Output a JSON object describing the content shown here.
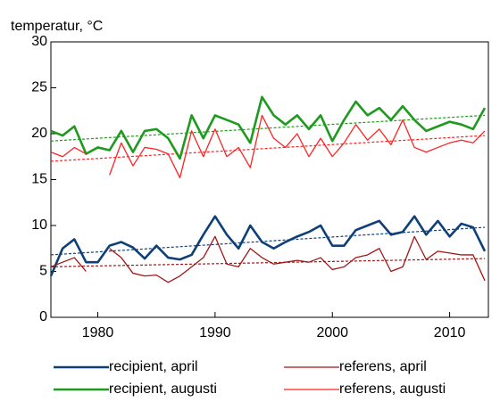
{
  "chart_data": {
    "type": "line",
    "y_axis_label": "temperatur, °C",
    "x": [
      1976,
      1977,
      1978,
      1979,
      1980,
      1981,
      1982,
      1983,
      1984,
      1985,
      1986,
      1987,
      1988,
      1989,
      1990,
      1991,
      1992,
      1993,
      1994,
      1995,
      1996,
      1997,
      1998,
      1999,
      2000,
      2001,
      2002,
      2003,
      2004,
      2005,
      2006,
      2007,
      2008,
      2009,
      2010,
      2011,
      2012,
      2013
    ],
    "xlim": [
      1976,
      2013
    ],
    "xticks": [
      1980,
      1990,
      2000,
      2010
    ],
    "ylim": [
      0,
      30
    ],
    "yticks": [
      0,
      5,
      10,
      15,
      20,
      25,
      30
    ],
    "series": [
      {
        "name": "recipient, april",
        "color": "#0f3f78",
        "values": [
          4.5,
          7.5,
          8.5,
          6,
          6,
          7.8,
          8.2,
          7.6,
          6.4,
          7.8,
          6.5,
          6.3,
          6.8,
          9,
          11,
          9,
          7.5,
          10,
          8.2,
          7.5,
          8.2,
          8.8,
          9.3,
          10,
          7.8,
          7.8,
          9.5,
          10,
          10.5,
          9,
          9.3,
          11,
          9,
          10.5,
          8.8,
          10.2,
          9.8,
          7.2
        ]
      },
      {
        "name": "referens, april",
        "color": "#a31515",
        "values": [
          5.5,
          6,
          6.5,
          5,
          null,
          7.5,
          6.5,
          4.8,
          4.5,
          4.6,
          3.8,
          4.5,
          5.5,
          6.5,
          8.8,
          5.8,
          5.5,
          7.5,
          6.5,
          5.8,
          6,
          6.2,
          6,
          6.5,
          5.2,
          5.5,
          6.5,
          6.8,
          7.5,
          5,
          5.5,
          8.8,
          6.3,
          7.2,
          7,
          6.8,
          6.8,
          4
        ]
      },
      {
        "name": "recipient, augusti",
        "color": "#1e9a1e",
        "values": [
          20.3,
          19.8,
          20.8,
          17.8,
          18.5,
          18.2,
          20.3,
          18,
          20.3,
          20.5,
          19.5,
          17.3,
          22,
          19.5,
          22,
          21.5,
          21,
          19,
          24,
          22,
          21,
          22,
          20.5,
          22,
          19.2,
          21.5,
          23.5,
          22,
          22.8,
          21.5,
          23,
          21.5,
          20.3,
          20.8,
          21.3,
          21,
          20.5,
          22.8
        ]
      },
      {
        "name": "referens, augusti",
        "color": "#ff2222",
        "values": [
          18,
          17.5,
          18.5,
          17.8,
          null,
          15.5,
          19,
          16.5,
          18.5,
          18.3,
          17.8,
          15.2,
          20.3,
          17.5,
          20.5,
          17.5,
          18.5,
          16.3,
          22,
          19.5,
          18.5,
          20,
          17.5,
          19.5,
          17.5,
          19,
          21,
          19.3,
          20.5,
          18.8,
          21.5,
          18.5,
          18,
          18.5,
          19,
          19.3,
          19,
          20.3
        ]
      }
    ],
    "trendlines": [
      {
        "color": "#0f3f78",
        "x": [
          1976,
          2013
        ],
        "values": [
          6.8,
          9.8
        ]
      },
      {
        "color": "#a31515",
        "x": [
          1976,
          2013
        ],
        "values": [
          5.5,
          6.4
        ]
      },
      {
        "color": "#1e9a1e",
        "x": [
          1976,
          2013
        ],
        "values": [
          19.2,
          22
        ]
      },
      {
        "color": "#ff2222",
        "x": [
          1976,
          2013
        ],
        "values": [
          17,
          19.8
        ]
      }
    ]
  }
}
